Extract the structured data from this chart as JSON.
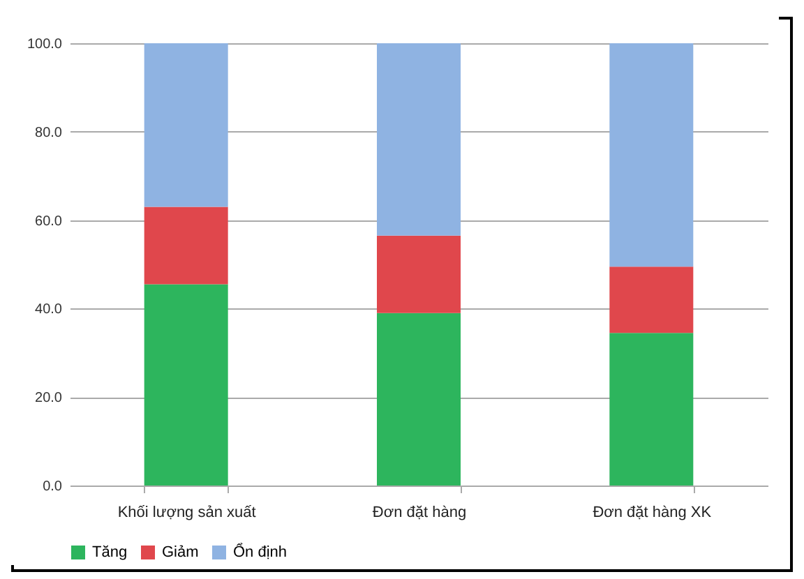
{
  "chart_data": {
    "type": "bar",
    "stacked": true,
    "categories": [
      "Khối lượng sản xuất",
      "Đơn đặt hàng",
      "Đơn đặt hàng XK"
    ],
    "series": [
      {
        "name": "Tăng",
        "color": "#2db55d",
        "values": [
          45.5,
          39,
          34.5
        ]
      },
      {
        "name": "Giảm",
        "color": "#e0474c",
        "values": [
          17.5,
          17.5,
          15
        ]
      },
      {
        "name": "Ổn định",
        "color": "#8fb3e2",
        "values": [
          37,
          43.5,
          50.5
        ]
      }
    ],
    "ylim": [
      0,
      100
    ],
    "yticks": [
      {
        "value": 0,
        "label": "0.0"
      },
      {
        "value": 20,
        "label": "20.0"
      },
      {
        "value": 40,
        "label": "40.0"
      },
      {
        "value": 60,
        "label": "60.0"
      },
      {
        "value": 80,
        "label": "80.0"
      },
      {
        "value": 100,
        "label": "100.0"
      }
    ],
    "grid": "y",
    "legend": "bottom"
  }
}
